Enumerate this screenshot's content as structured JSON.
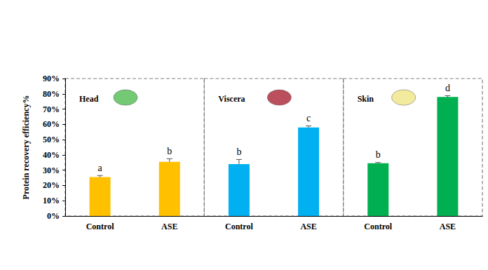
{
  "chart_data": {
    "type": "bar",
    "ylabel": "Protein recovery efficiency%",
    "ylim": [
      0,
      90
    ],
    "yticks": [
      {
        "value": 0,
        "label": "0%"
      },
      {
        "value": 10,
        "label": "10%"
      },
      {
        "value": 20,
        "label": "20%"
      },
      {
        "value": 30,
        "label": "30%"
      },
      {
        "value": 40,
        "label": "40%"
      },
      {
        "value": 50,
        "label": "50%"
      },
      {
        "value": 60,
        "label": "60%"
      },
      {
        "value": 70,
        "label": "70%"
      },
      {
        "value": 80,
        "label": "80%"
      },
      {
        "value": 90,
        "label": "90%"
      }
    ],
    "grid": false,
    "groups": [
      {
        "title": "Head",
        "color": "#FFC000",
        "categories": [
          "Control",
          "ASE"
        ],
        "values": [
          25.5,
          35.5
        ],
        "errors": [
          1.0,
          2.0
        ],
        "annotations": [
          "a",
          "b"
        ]
      },
      {
        "title": "Viscera",
        "color": "#00B0F0",
        "categories": [
          "Control",
          "ASE"
        ],
        "values": [
          34,
          58
        ],
        "errors": [
          3.0,
          1.0
        ],
        "annotations": [
          "b",
          "c"
        ]
      },
      {
        "title": "Skin",
        "color": "#00B050",
        "categories": [
          "Control",
          "ASE"
        ],
        "values": [
          34.5,
          78
        ],
        "errors": [
          0.5,
          0.8
        ],
        "annotations": [
          "b",
          "d"
        ]
      }
    ]
  }
}
